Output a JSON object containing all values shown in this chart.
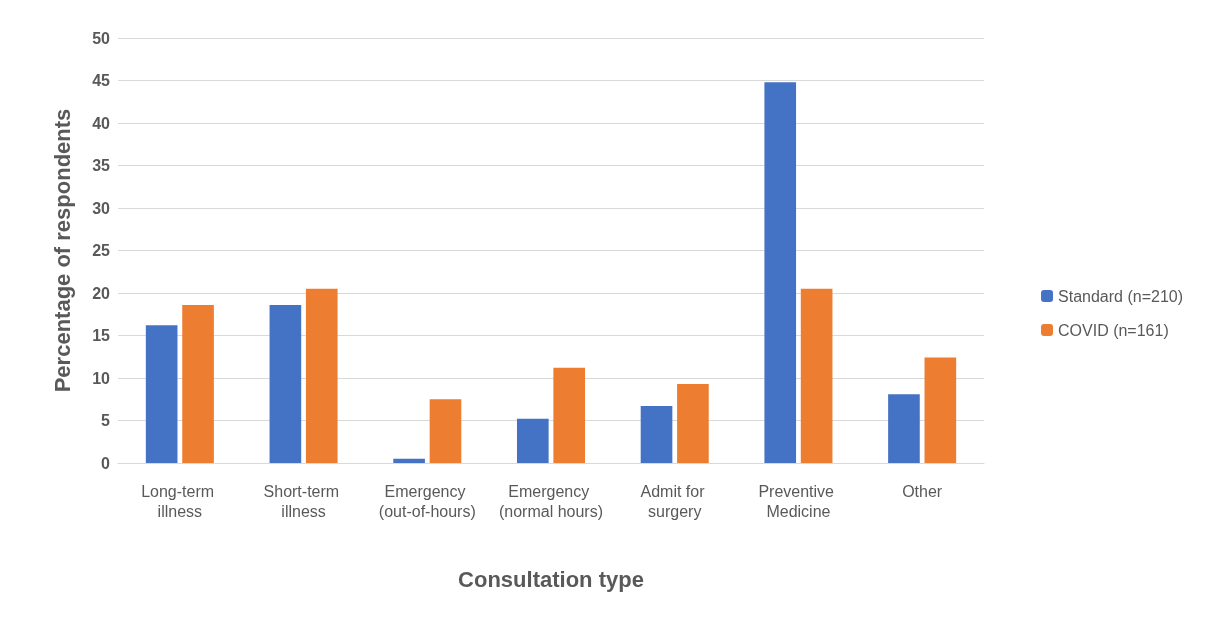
{
  "chart_data": {
    "type": "bar",
    "xlabel": "Consultation type",
    "ylabel": "Percentage of respondents",
    "categories": [
      "Long-term illness",
      "Short-term illness",
      "Emergency (out-of-hours)",
      "Emergency (normal hours)",
      "Admit for surgery",
      "Preventive Medicine",
      "Other"
    ],
    "series": [
      {
        "name": "Standard (n=210)",
        "color": "#4472c4",
        "values": [
          16.2,
          18.6,
          0.5,
          5.2,
          6.7,
          44.8,
          8.1
        ]
      },
      {
        "name": "COVID (n=161)",
        "color": "#ed7d31",
        "values": [
          18.6,
          20.5,
          7.5,
          11.2,
          9.3,
          20.5,
          12.4
        ]
      }
    ],
    "ylim": [
      0,
      50
    ],
    "yticks": [
      0,
      5,
      10,
      15,
      20,
      25,
      30,
      35,
      40,
      45,
      50
    ],
    "grid": "y",
    "legend": "right"
  }
}
